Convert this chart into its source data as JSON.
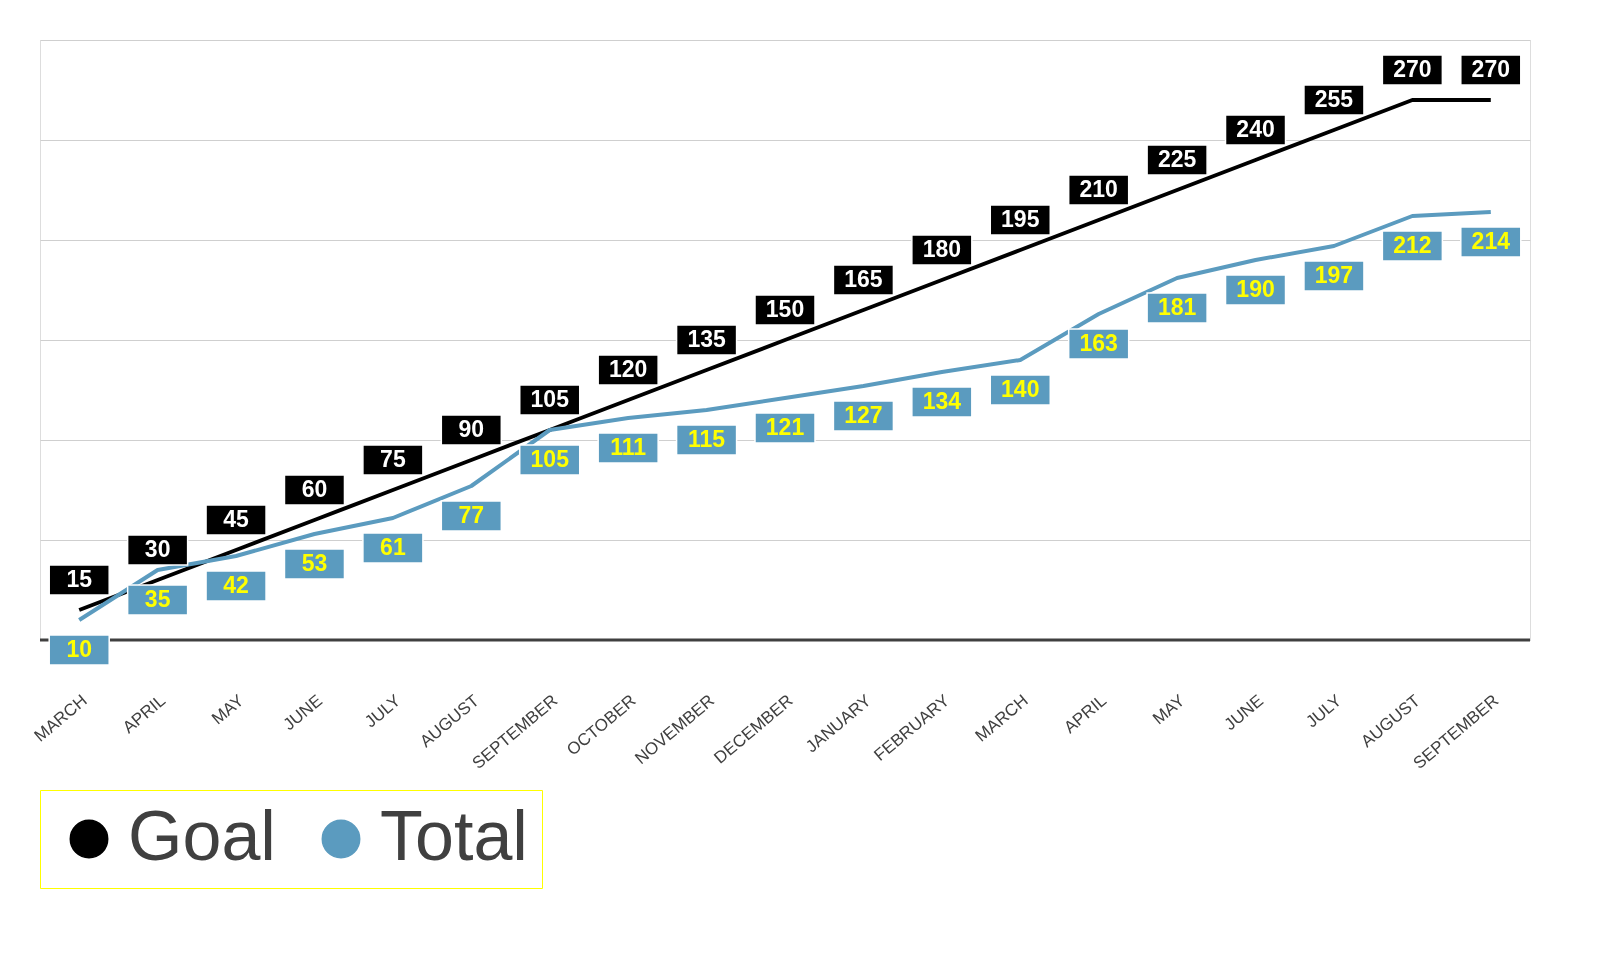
{
  "chart_data": {
    "type": "line",
    "categories": [
      "MARCH",
      "APRIL",
      "MAY",
      "JUNE",
      "JULY",
      "AUGUST",
      "SEPTEMBER",
      "OCTOBER",
      "NOVEMBER",
      "DECEMBER",
      "JANUARY",
      "FEBRUARY",
      "MARCH",
      "APRIL",
      "MAY",
      "JUNE",
      "JULY",
      "AUGUST",
      "SEPTEMBER"
    ],
    "series": [
      {
        "name": "Goal",
        "color": "#000000",
        "values": [
          15,
          30,
          45,
          60,
          75,
          90,
          105,
          120,
          135,
          150,
          165,
          180,
          195,
          210,
          225,
          240,
          255,
          270,
          270
        ]
      },
      {
        "name": "Total",
        "color": "#5b9bbf",
        "values": [
          10,
          35,
          42,
          53,
          61,
          77,
          105,
          111,
          115,
          121,
          127,
          134,
          140,
          163,
          181,
          190,
          197,
          212,
          214
        ]
      }
    ],
    "ylim": [
      0,
      300
    ],
    "yticks": [
      {
        "value": 0,
        "label": null
      },
      {
        "value": 50,
        "label": null
      },
      {
        "value": 100,
        "label": null
      },
      {
        "value": 150,
        "label": null
      },
      {
        "value": 200,
        "label": null
      },
      {
        "value": 250,
        "label": null
      },
      {
        "value": 300,
        "label": null
      }
    ],
    "tick_labels": "x",
    "grid": "y",
    "legend": "bottom",
    "data_labels": true,
    "line_style": "solid"
  }
}
